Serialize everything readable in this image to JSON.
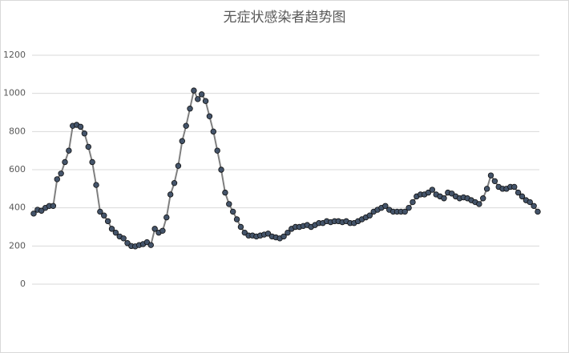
{
  "chart_data": {
    "type": "line",
    "title": "无症状感染者趋势图",
    "values": [
      370,
      390,
      385,
      400,
      410,
      410,
      550,
      580,
      640,
      700,
      830,
      835,
      825,
      790,
      720,
      640,
      520,
      380,
      360,
      330,
      290,
      270,
      250,
      240,
      215,
      200,
      198,
      205,
      210,
      220,
      205,
      290,
      270,
      280,
      350,
      470,
      530,
      620,
      750,
      830,
      920,
      1015,
      970,
      995,
      960,
      880,
      800,
      700,
      600,
      480,
      420,
      380,
      340,
      300,
      270,
      255,
      255,
      250,
      255,
      260,
      265,
      250,
      245,
      240,
      250,
      270,
      290,
      300,
      300,
      305,
      310,
      300,
      310,
      320,
      320,
      330,
      325,
      330,
      330,
      325,
      330,
      320,
      320,
      330,
      340,
      350,
      360,
      380,
      390,
      400,
      410,
      390,
      380,
      380,
      380,
      380,
      400,
      430,
      460,
      470,
      470,
      480,
      495,
      470,
      460,
      450,
      480,
      475,
      460,
      450,
      455,
      450,
      440,
      430,
      420,
      450,
      500,
      570,
      540,
      510,
      500,
      500,
      510,
      510,
      480,
      460,
      440,
      430,
      410,
      380
    ],
    "color": "#7f7f7f",
    "marker_color": "#44546a",
    "ylim": [
      0,
      1200
    ],
    "yticks": [
      0,
      200,
      400,
      600,
      800,
      1000,
      1200
    ],
    "grid": true
  }
}
